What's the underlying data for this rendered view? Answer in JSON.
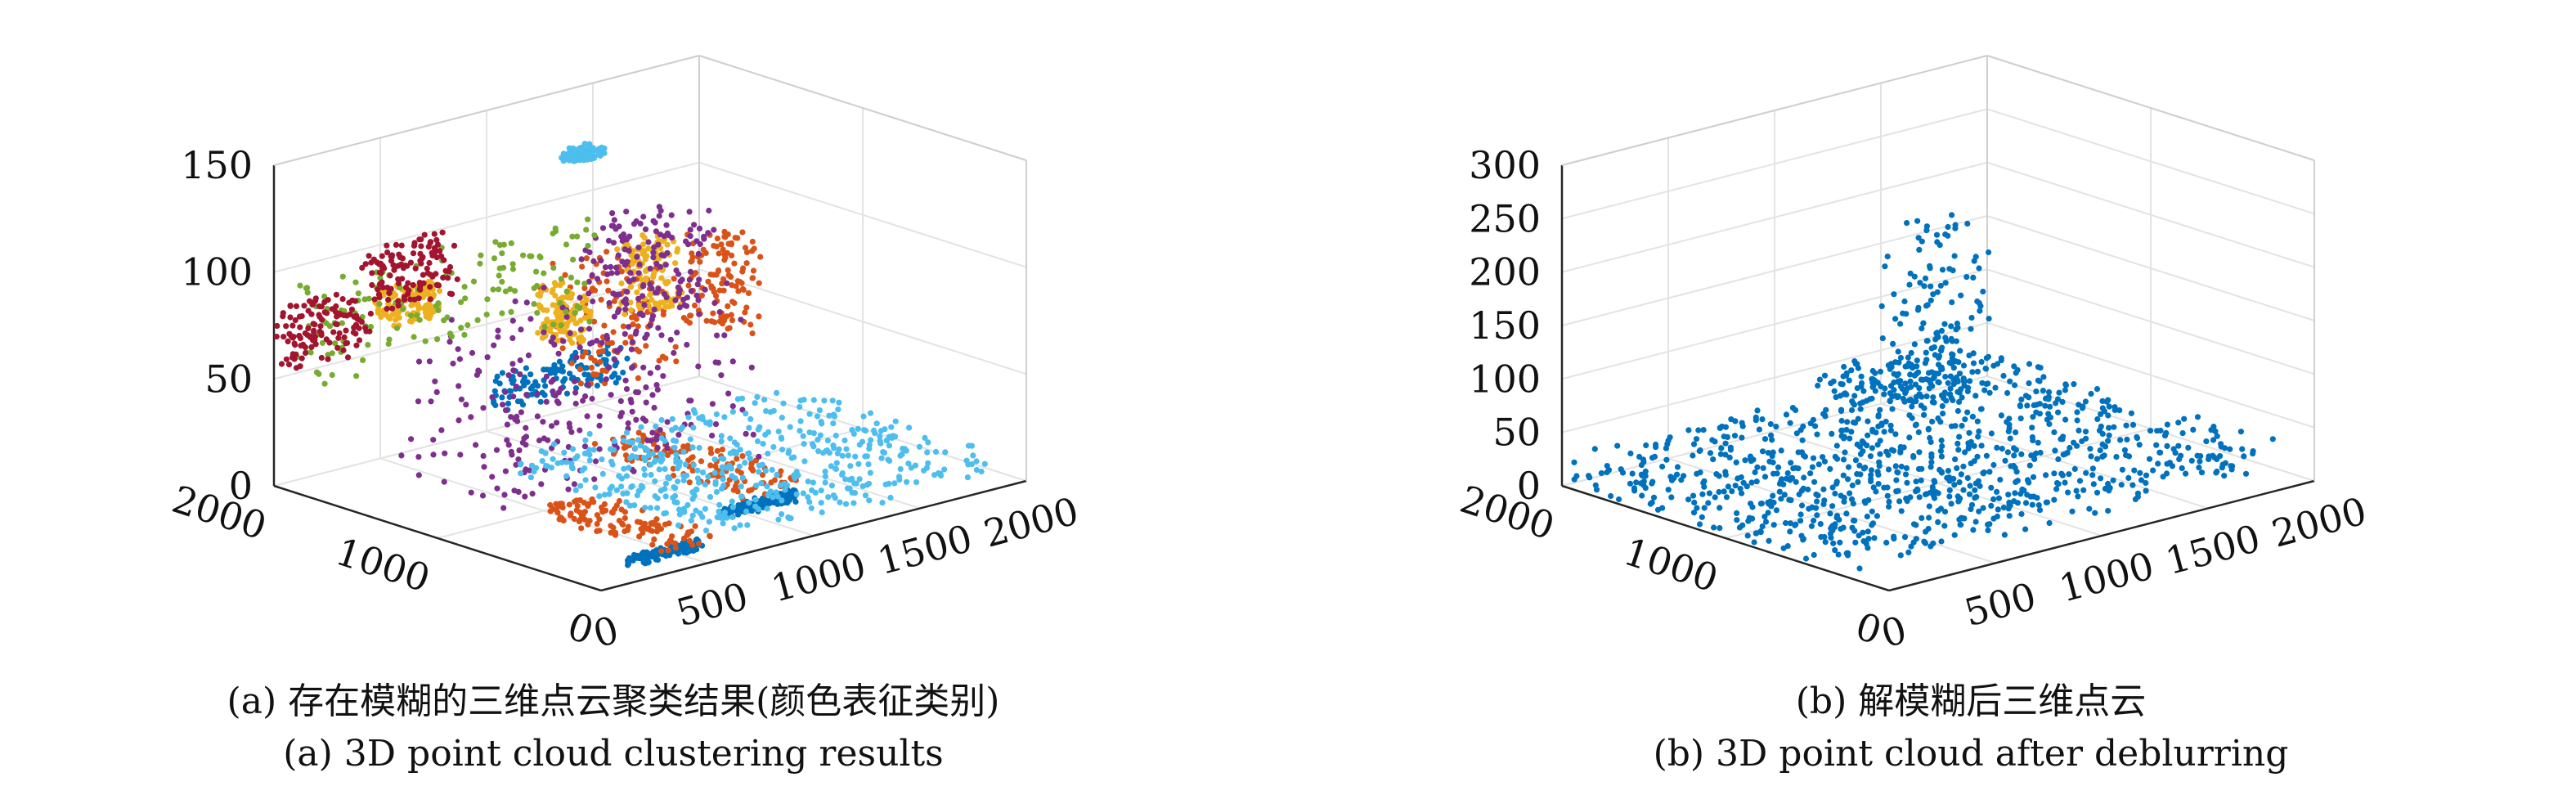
{
  "chart_data": [
    {
      "type": "scatter",
      "subtype": "3d-point-cloud",
      "title": "",
      "caption_cn": "(a) 存在模糊的三维点云聚类结果(颜色表征类别)",
      "caption_en": "(a) 3D point cloud clustering results",
      "xlim": [
        0,
        2000
      ],
      "ylim": [
        0,
        2000
      ],
      "zlim": [
        0,
        150
      ],
      "x_ticks": [
        "0",
        "500",
        "1000",
        "1500",
        "2000"
      ],
      "y_ticks": [
        "0",
        "1000",
        "2000"
      ],
      "z_ticks": [
        "0",
        "50",
        "100",
        "150"
      ],
      "grid": true,
      "series": [
        {
          "color": "#0072BD",
          "clusters": [
            {
              "x": [
                250,
                600
              ],
              "y": [
                150,
                200
              ],
              "z": [
                0,
                5
              ]
            },
            {
              "x": [
                900,
                1250
              ],
              "y": [
                400,
                450
              ],
              "z": [
                0,
                5
              ]
            },
            {
              "x": [
                600,
                1200
              ],
              "y": [
                1350,
                1500
              ],
              "z": [
                35,
                50
              ]
            }
          ]
        },
        {
          "color": "#D95319",
          "clusters": [
            {
              "x": [
                450,
                700
              ],
              "y": [
                200,
                1000
              ],
              "z": [
                0,
                5
              ]
            },
            {
              "x": [
                1100,
                1400
              ],
              "y": [
                550,
                1500
              ],
              "z": [
                0,
                5
              ]
            },
            {
              "x": [
                850,
                1350
              ],
              "y": [
                1200,
                1500
              ],
              "z": [
                40,
                95
              ]
            },
            {
              "x": [
                1450,
                1650
              ],
              "y": [
                1150,
                1400
              ],
              "z": [
                50,
                95
              ]
            }
          ]
        },
        {
          "color": "#EDB120",
          "clusters": [
            {
              "x": [
                900,
                1050
              ],
              "y": [
                1400,
                1600
              ],
              "z": [
                55,
                80
              ]
            },
            {
              "x": [
                1250,
                1450
              ],
              "y": [
                1350,
                1550
              ],
              "z": [
                60,
                95
              ]
            },
            {
              "x": [
                450,
                700
              ],
              "y": [
                1850,
                2000
              ],
              "z": [
                65,
                80
              ]
            }
          ]
        },
        {
          "color": "#7E2F8E",
          "clusters": [
            {
              "x": [
                300,
                1500
              ],
              "y": [
                900,
                1700
              ],
              "z": [
                0,
                80
              ]
            },
            {
              "x": [
                1200,
                1550
              ],
              "y": [
                1300,
                1700
              ],
              "z": [
                60,
                105
              ]
            }
          ]
        },
        {
          "color": "#77AC30",
          "clusters": [
            {
              "x": [
                0,
                1400
              ],
              "y": [
                1700,
                2000
              ],
              "z": [
                50,
                95
              ]
            }
          ]
        },
        {
          "color": "#4DBEEE",
          "clusters": [
            {
              "x": [
                700,
                2000
              ],
              "y": [
                150,
                1500
              ],
              "z": [
                0,
                10
              ]
            },
            {
              "x": [
                1300,
                1450
              ],
              "y": [
                1850,
                1950
              ],
              "z": [
                120,
                125
              ]
            }
          ]
        },
        {
          "color": "#A2142F",
          "clusters": [
            {
              "x": [
                0,
                400
              ],
              "y": [
                1900,
                2000
              ],
              "z": [
                55,
                85
              ]
            },
            {
              "x": [
                400,
                800
              ],
              "y": [
                1900,
                2000
              ],
              "z": [
                70,
                100
              ]
            }
          ]
        }
      ]
    },
    {
      "type": "scatter",
      "subtype": "3d-point-cloud",
      "title": "",
      "caption_cn": "(b) 解模糊后三维点云",
      "caption_en": "(b) 3D point cloud after deblurring",
      "xlim": [
        0,
        2000
      ],
      "ylim": [
        0,
        2000
      ],
      "zlim": [
        0,
        300
      ],
      "x_ticks": [
        "0",
        "500",
        "1000",
        "1500",
        "2000"
      ],
      "y_ticks": [
        "0",
        "1000",
        "2000"
      ],
      "z_ticks": [
        "0",
        "50",
        "100",
        "150",
        "200",
        "250",
        "300"
      ],
      "grid": true,
      "series": [
        {
          "color": "#0072BD",
          "clusters": [
            {
              "x": [
                0,
                2000
              ],
              "y": [
                200,
                2000
              ],
              "z": [
                0,
                30
              ]
            },
            {
              "x": [
                1150,
                1800
              ],
              "y": [
                1500,
                2000
              ],
              "z": [
                30,
                50
              ]
            },
            {
              "x": [
                1250,
                1600
              ],
              "y": [
                1400,
                1750
              ],
              "z": [
                40,
                200
              ]
            }
          ]
        }
      ]
    }
  ]
}
